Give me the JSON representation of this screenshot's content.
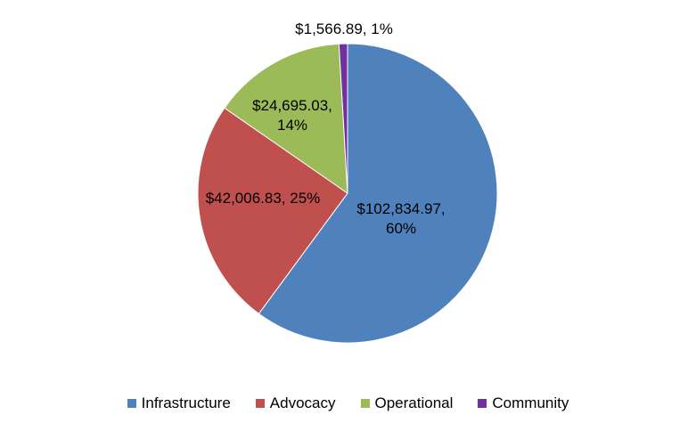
{
  "chart_data": {
    "type": "pie",
    "title": "",
    "legend_position": "bottom",
    "slices": [
      {
        "name": "Infrastructure",
        "value": 102834.97,
        "label": "$102,834.97,",
        "percent_label": "60%",
        "color": "#4F81BD"
      },
      {
        "name": "Advocacy",
        "value": 42006.83,
        "label": "$42,006.83, 25%",
        "percent_label": "",
        "color": "#C0504D"
      },
      {
        "name": "Operational",
        "value": 24695.03,
        "label": "$24,695.03,",
        "percent_label": "14%",
        "color": "#9BBB59"
      },
      {
        "name": "Community",
        "value": 1566.89,
        "label": "$1,566.89, 1%",
        "percent_label": "",
        "color": "#7030A0"
      }
    ]
  }
}
